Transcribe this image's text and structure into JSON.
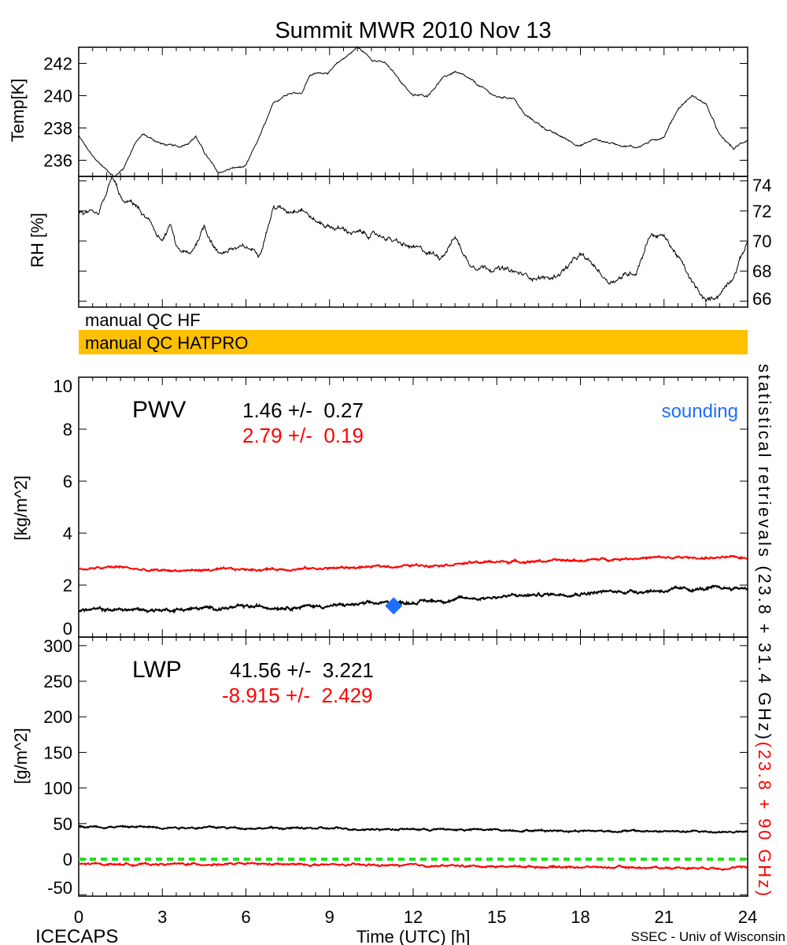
{
  "chart_data": {
    "type": "line",
    "title": "Summit MWR 2010 Nov 13",
    "xlabel": "Time (UTC) [h]",
    "xlim": [
      0,
      24
    ],
    "xticks": [
      "0",
      "3",
      "6",
      "9",
      "12",
      "15",
      "18",
      "21",
      "24"
    ],
    "footer_left": "ICECAPS",
    "footer_right": "SSEC - Univ of Wisconsin",
    "qc": {
      "hf_label": "manual QC HF",
      "hatpro_label": "manual QC HATPRO",
      "hatpro_color": "#FFC000"
    },
    "right_label_black": "statistical retrievals (23.8 + 31.4 GHz)",
    "right_label_red": "(23.8 + 90 GHz)",
    "panels": [
      {
        "name": "temp",
        "ylabel": "Temp[K]",
        "ylim": [
          235,
          243
        ],
        "yticks": [
          "236",
          "238",
          "240",
          "242"
        ],
        "ytick_values": [
          236,
          238,
          240,
          242
        ],
        "tick_side": "left",
        "series": [
          {
            "name": "Temp",
            "color": "#000000",
            "noise": 0.08,
            "points": [
              [
                0,
                237.5
              ],
              [
                0.5,
                236.2
              ],
              [
                1,
                235.4
              ],
              [
                1.3,
                235.0
              ],
              [
                1.6,
                235.5
              ],
              [
                2,
                237.0
              ],
              [
                2.3,
                237.6
              ],
              [
                3,
                237.0
              ],
              [
                3.6,
                236.8
              ],
              [
                4,
                237.2
              ],
              [
                4.2,
                237.5
              ],
              [
                4.5,
                236.5
              ],
              [
                5,
                235.2
              ],
              [
                5.5,
                235.5
              ],
              [
                6,
                235.6
              ],
              [
                6.5,
                237.5
              ],
              [
                7,
                239.5
              ],
              [
                7.5,
                240.2
              ],
              [
                8,
                240.2
              ],
              [
                8.3,
                241.3
              ],
              [
                9,
                241.5
              ],
              [
                9.5,
                242.3
              ],
              [
                10,
                243.0
              ],
              [
                10.5,
                242.3
              ],
              [
                11,
                242.0
              ],
              [
                11.5,
                241.0
              ],
              [
                12,
                240.0
              ],
              [
                12.5,
                240.0
              ],
              [
                13,
                241.0
              ],
              [
                13.5,
                241.5
              ],
              [
                14,
                241.0
              ],
              [
                15,
                239.9
              ],
              [
                15.6,
                239.9
              ],
              [
                16,
                238.8
              ],
              [
                17,
                237.7
              ],
              [
                18,
                236.9
              ],
              [
                18.5,
                237.3
              ],
              [
                19,
                237.1
              ],
              [
                20,
                236.8
              ],
              [
                21,
                237.5
              ],
              [
                21.5,
                239.2
              ],
              [
                22,
                240.0
              ],
              [
                22.5,
                239.5
              ],
              [
                23,
                237.5
              ],
              [
                23.5,
                236.7
              ],
              [
                24,
                237.3
              ]
            ]
          }
        ]
      },
      {
        "name": "rh",
        "ylabel": "RH [%]",
        "ylim": [
          65.6,
          74.3
        ],
        "yticks": [
          "66",
          "68",
          "70",
          "72",
          "74"
        ],
        "ytick_values": [
          66,
          68,
          70,
          72,
          74
        ],
        "tick_side": "right",
        "series": [
          {
            "name": "RH",
            "color": "#000000",
            "noise": 0.2,
            "points": [
              [
                0,
                72
              ],
              [
                0.7,
                71.5
              ],
              [
                1.2,
                74.2
              ],
              [
                1.6,
                72.5
              ],
              [
                2,
                72.5
              ],
              [
                3,
                70
              ],
              [
                3.3,
                71
              ],
              [
                3.5,
                69.5
              ],
              [
                4,
                69.0
              ],
              [
                4.5,
                71.0
              ],
              [
                5,
                69.2
              ],
              [
                5.5,
                69.5
              ],
              [
                6,
                69.5
              ],
              [
                6.5,
                69.3
              ],
              [
                7,
                72.3
              ],
              [
                7.5,
                72.0
              ],
              [
                8,
                72.3
              ],
              [
                8.5,
                71.3
              ],
              [
                9,
                71.0
              ],
              [
                10,
                70.5
              ],
              [
                11,
                70.3
              ],
              [
                11.5,
                69.8
              ],
              [
                12,
                69.5
              ],
              [
                13,
                69.0
              ],
              [
                13.5,
                70.3
              ],
              [
                14,
                68.5
              ],
              [
                15,
                68.2
              ],
              [
                16,
                67.7
              ],
              [
                17,
                67.5
              ],
              [
                18,
                69.0
              ],
              [
                18.5,
                68.3
              ],
              [
                19,
                67.3
              ],
              [
                20,
                68.0
              ],
              [
                20.5,
                70.5
              ],
              [
                21,
                70.3
              ],
              [
                21.5,
                69.0
              ],
              [
                22,
                67.2
              ],
              [
                22.5,
                65.9
              ],
              [
                23,
                66.5
              ],
              [
                23.5,
                67.8
              ],
              [
                24,
                70
              ]
            ]
          }
        ]
      },
      {
        "name": "pwv",
        "ylabel": "[kg/m^2]",
        "ylim": [
          0,
          10
        ],
        "yticks": [
          "0",
          "2",
          "4",
          "6",
          "8",
          "10"
        ],
        "ytick_values": [
          0,
          2,
          4,
          6,
          8,
          10
        ],
        "label": "PWV",
        "stat_black": "1.46 +/-  0.27",
        "stat_red": "2.79 +/-  0.19",
        "sounding_label": "sounding",
        "sounding_color": "#1E6EFF",
        "sounding_point": [
          11.3,
          1.2
        ],
        "series": [
          {
            "name": "23.8 + 31.4 GHz",
            "color": "#000000",
            "noise": 0.07,
            "points": [
              [
                0,
                1.05
              ],
              [
                3,
                1.05
              ],
              [
                6,
                1.15
              ],
              [
                9,
                1.2
              ],
              [
                12,
                1.35
              ],
              [
                15,
                1.55
              ],
              [
                18,
                1.7
              ],
              [
                21,
                1.8
              ],
              [
                24,
                1.9
              ]
            ]
          },
          {
            "name": "23.8 + 90 GHz",
            "color": "#FF0000",
            "noise": 0.05,
            "points": [
              [
                0,
                2.6
              ],
              [
                1.5,
                2.7
              ],
              [
                2.5,
                2.55
              ],
              [
                6,
                2.6
              ],
              [
                9,
                2.65
              ],
              [
                12,
                2.75
              ],
              [
                15,
                2.9
              ],
              [
                18,
                2.95
              ],
              [
                20,
                3.05
              ],
              [
                24,
                3.05
              ]
            ]
          }
        ]
      },
      {
        "name": "lwp",
        "ylabel": "[g/m^2]",
        "ylim": [
          -52,
          312
        ],
        "yticks": [
          "-50",
          "0",
          "50",
          "100",
          "150",
          "200",
          "250",
          "300"
        ],
        "ytick_values": [
          -50,
          0,
          50,
          100,
          150,
          200,
          250,
          300
        ],
        "label": "LWP",
        "stat_black": "41.56 +/-  3.221",
        "stat_red": "-8.915 +/-  2.429",
        "zero_line_color": "#22DD22",
        "series": [
          {
            "name": "23.8 + 31.4 GHz",
            "color": "#000000",
            "noise": 1.5,
            "points": [
              [
                0,
                46
              ],
              [
                3,
                45
              ],
              [
                6,
                44
              ],
              [
                9,
                43
              ],
              [
                12,
                42
              ],
              [
                15,
                41
              ],
              [
                18,
                40
              ],
              [
                21,
                39
              ],
              [
                24,
                38
              ]
            ]
          },
          {
            "name": "23.8 + 90 GHz",
            "color": "#FF0000",
            "noise": 1.5,
            "points": [
              [
                0,
                -7
              ],
              [
                3,
                -7
              ],
              [
                6,
                -7
              ],
              [
                9,
                -8
              ],
              [
                12,
                -9
              ],
              [
                15,
                -10
              ],
              [
                18,
                -11
              ],
              [
                21,
                -12
              ],
              [
                24,
                -12
              ]
            ]
          }
        ]
      }
    ]
  }
}
